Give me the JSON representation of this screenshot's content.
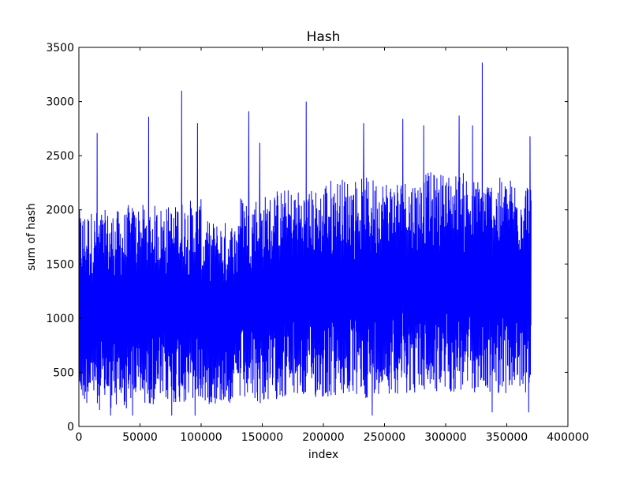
{
  "chart_data": {
    "type": "line",
    "title": "Hash",
    "xlabel": "index",
    "ylabel": "sum of hash",
    "xlim": [
      0,
      400000
    ],
    "ylim": [
      0,
      3500
    ],
    "xticks": [
      0,
      50000,
      100000,
      150000,
      200000,
      250000,
      300000,
      350000,
      400000
    ],
    "yticks": [
      0,
      500,
      1000,
      1500,
      2000,
      2500,
      3000,
      3500
    ],
    "grid": false,
    "line_color": "#0000ff",
    "x_max_data": 370000,
    "segments": [
      {
        "x": [
          0,
          15000
        ],
        "low": 200,
        "high": 2000
      },
      {
        "x": [
          15000,
          40000
        ],
        "low": 150,
        "high": 2000
      },
      {
        "x": [
          40000,
          80000
        ],
        "low": 200,
        "high": 2050
      },
      {
        "x": [
          80000,
          100000
        ],
        "low": 200,
        "high": 2100
      },
      {
        "x": [
          100000,
          130000
        ],
        "low": 200,
        "high": 1900
      },
      {
        "x": [
          130000,
          160000
        ],
        "low": 200,
        "high": 2150
      },
      {
        "x": [
          160000,
          200000
        ],
        "low": 250,
        "high": 2200
      },
      {
        "x": [
          200000,
          240000
        ],
        "low": 250,
        "high": 2300
      },
      {
        "x": [
          240000,
          280000
        ],
        "low": 300,
        "high": 2300
      },
      {
        "x": [
          280000,
          320000
        ],
        "low": 300,
        "high": 2350
      },
      {
        "x": [
          320000,
          370000
        ],
        "low": 300,
        "high": 2300
      }
    ],
    "peaks": [
      {
        "x": 15000,
        "y": 2710
      },
      {
        "x": 57000,
        "y": 2860
      },
      {
        "x": 84000,
        "y": 3100
      },
      {
        "x": 97000,
        "y": 2800
      },
      {
        "x": 139000,
        "y": 2910
      },
      {
        "x": 148000,
        "y": 2620
      },
      {
        "x": 186000,
        "y": 3000
      },
      {
        "x": 233000,
        "y": 2800
      },
      {
        "x": 265000,
        "y": 2840
      },
      {
        "x": 282000,
        "y": 2780
      },
      {
        "x": 311000,
        "y": 2870
      },
      {
        "x": 322000,
        "y": 2780
      },
      {
        "x": 330000,
        "y": 3360
      },
      {
        "x": 369000,
        "y": 2680
      }
    ],
    "troughs": [
      {
        "x": 26000,
        "y": 100
      },
      {
        "x": 44000,
        "y": 100
      },
      {
        "x": 76000,
        "y": 100
      },
      {
        "x": 95000,
        "y": 100
      },
      {
        "x": 240000,
        "y": 100
      },
      {
        "x": 338000,
        "y": 130
      },
      {
        "x": 368000,
        "y": 130
      }
    ]
  }
}
